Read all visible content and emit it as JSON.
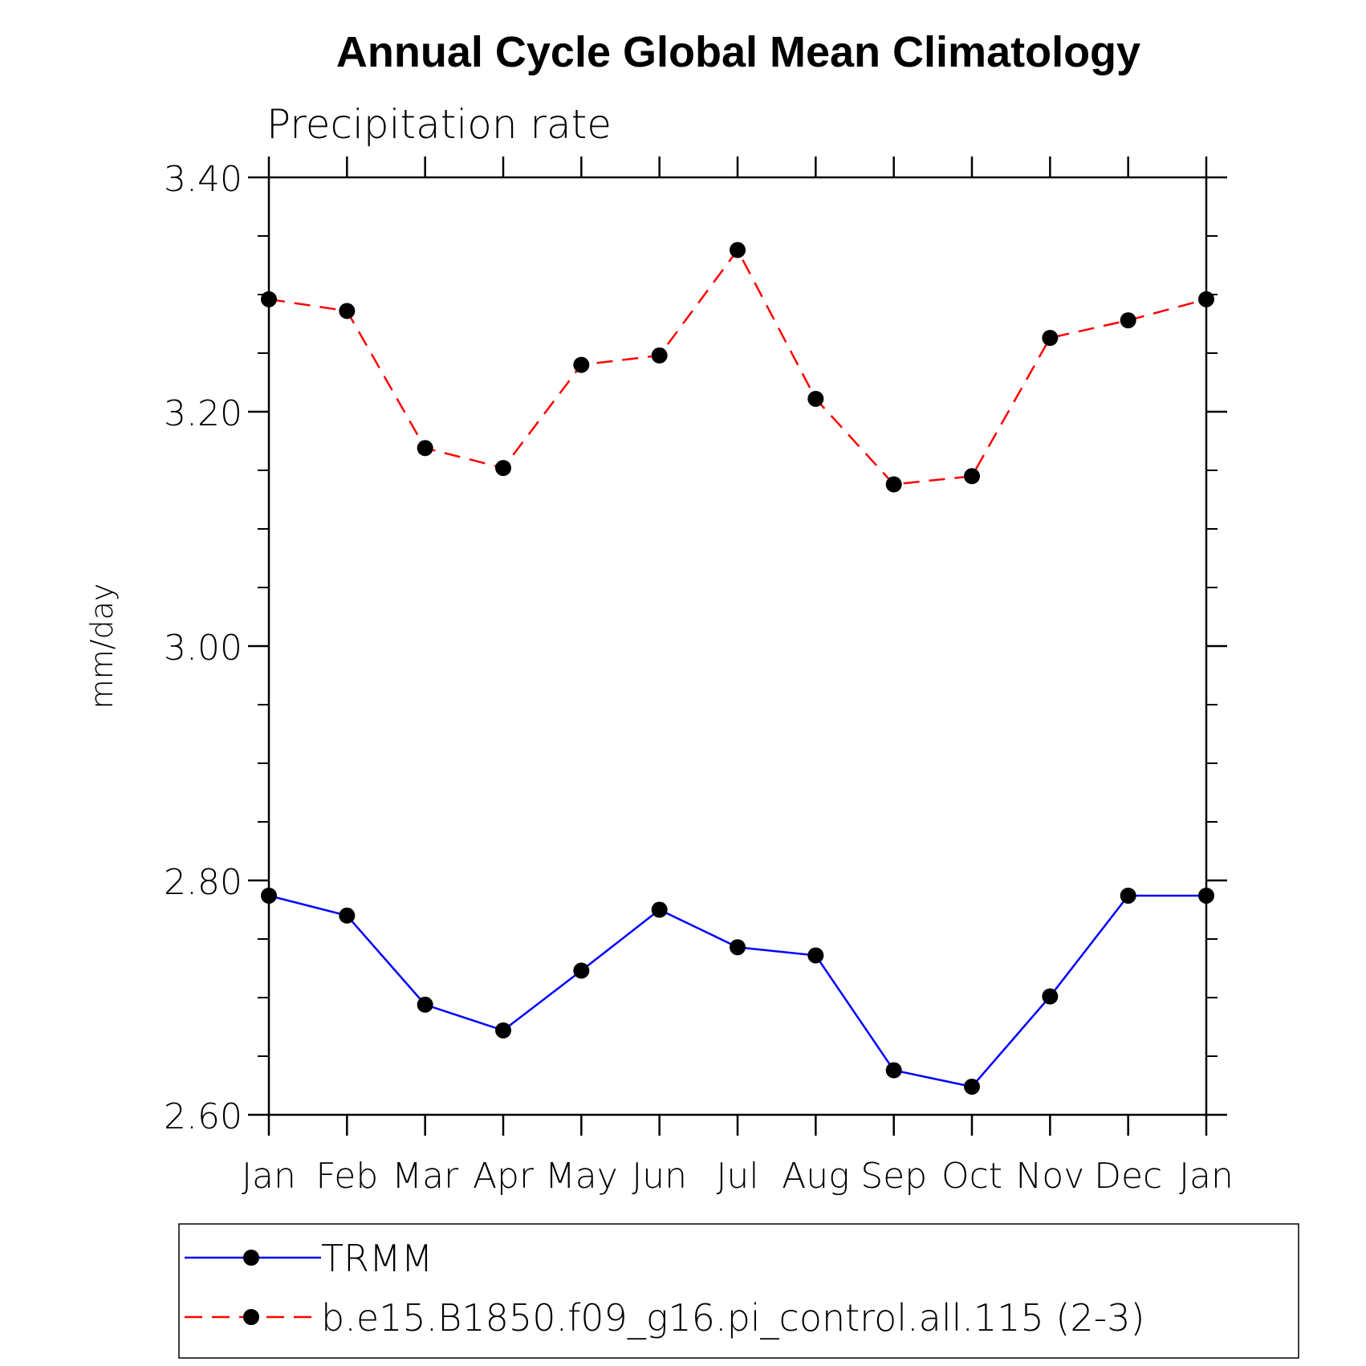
{
  "chart_data": {
    "type": "line",
    "title": "Annual Cycle Global Mean Climatology",
    "subtitle": "Precipitation rate",
    "xlabel": "",
    "ylabel": "mm/day",
    "categories": [
      "Jan",
      "Feb",
      "Mar",
      "Apr",
      "May",
      "Jun",
      "Jul",
      "Aug",
      "Sep",
      "Oct",
      "Nov",
      "Dec",
      "Jan"
    ],
    "ylim": [
      2.6,
      3.4
    ],
    "yticks": [
      "2.60",
      "2.80",
      "3.00",
      "3.20",
      "3.40"
    ],
    "ytick_values": [
      2.6,
      2.8,
      3.0,
      3.2,
      3.4
    ],
    "yminor_step": 0.05,
    "grid": false,
    "legend_placement": "bottom",
    "series": [
      {
        "name": "TRMM",
        "color": "#0000ff",
        "dashed": false,
        "values": [
          2.787,
          2.77,
          2.694,
          2.672,
          2.723,
          2.775,
          2.743,
          2.736,
          2.638,
          2.624,
          2.701,
          2.787,
          2.787
        ]
      },
      {
        "name": "b.e15.B1850.f09_g16.pi_control.all.115 (2-3)",
        "color": "#ff0000",
        "dashed": true,
        "values": [
          3.296,
          3.286,
          3.169,
          3.152,
          3.24,
          3.248,
          3.338,
          3.211,
          3.138,
          3.145,
          3.263,
          3.278,
          3.296
        ]
      }
    ]
  }
}
